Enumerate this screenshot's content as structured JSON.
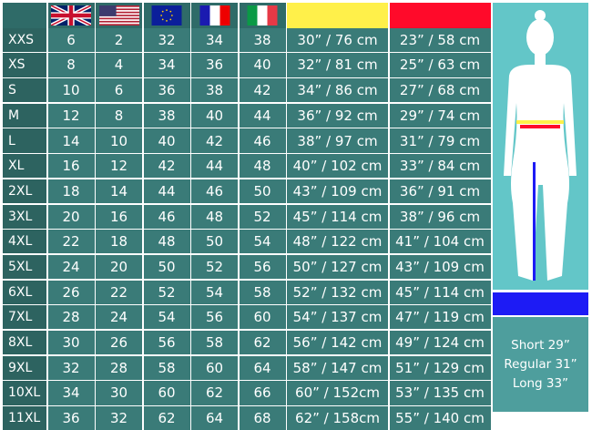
{
  "header": {
    "flags": [
      "uk-flag",
      "us-flag",
      "eu-flag",
      "france-flag",
      "italy-flag"
    ],
    "colors": {
      "bust": "#fff04a",
      "waist": "#ff0a2a",
      "inseam": "#1d1bf5"
    }
  },
  "rows": [
    [
      "XXS",
      "6",
      "2",
      "32",
      "34",
      "38",
      "30” / 76 cm",
      "23” / 58 cm"
    ],
    [
      "XS",
      "8",
      "4",
      "34",
      "36",
      "40",
      "32” / 81 cm",
      "25” / 63 cm"
    ],
    [
      "S",
      "10",
      "6",
      "36",
      "38",
      "42",
      "34” / 86 cm",
      "27” / 68 cm"
    ],
    [
      "M",
      "12",
      "8",
      "38",
      "40",
      "44",
      "36” / 92 cm",
      "29” / 74 cm"
    ],
    [
      "L",
      "14",
      "10",
      "40",
      "42",
      "46",
      "38” / 97 cm",
      "31” / 79 cm"
    ],
    [
      "XL",
      "16",
      "12",
      "42",
      "44",
      "48",
      "40” / 102 cm",
      "33” / 84 cm"
    ],
    [
      "2XL",
      "18",
      "14",
      "44",
      "46",
      "50",
      "43” / 109 cm",
      "36” / 91 cm"
    ],
    [
      "3XL",
      "20",
      "16",
      "46",
      "48",
      "52",
      "45” / 114 cm",
      "38” / 96 cm"
    ],
    [
      "4XL",
      "22",
      "18",
      "48",
      "50",
      "54",
      "48” / 122 cm",
      "41” / 104 cm"
    ],
    [
      "5XL",
      "24",
      "20",
      "50",
      "52",
      "56",
      "50” / 127 cm",
      "43” / 109 cm"
    ],
    [
      "6XL",
      "26",
      "22",
      "52",
      "54",
      "58",
      "52” / 132 cm",
      "45” / 114 cm"
    ],
    [
      "7XL",
      "28",
      "24",
      "54",
      "56",
      "60",
      "54” / 137 cm",
      "47” / 119 cm"
    ],
    [
      "8XL",
      "30",
      "26",
      "56",
      "58",
      "62",
      "56” / 142 cm",
      "49” / 124 cm"
    ],
    [
      "9XL",
      "32",
      "28",
      "58",
      "60",
      "64",
      "58” / 147 cm",
      "51” / 129 cm"
    ],
    [
      "10XL",
      "34",
      "30",
      "60",
      "62",
      "66",
      "60” / 152cm",
      "53” / 135 cm"
    ],
    [
      "11XL",
      "36",
      "32",
      "62",
      "64",
      "68",
      "62” / 158cm",
      "55” / 140 cm"
    ]
  ],
  "leg_lengths": [
    "Short 29”",
    "Regular 31”",
    "Long 33”"
  ]
}
